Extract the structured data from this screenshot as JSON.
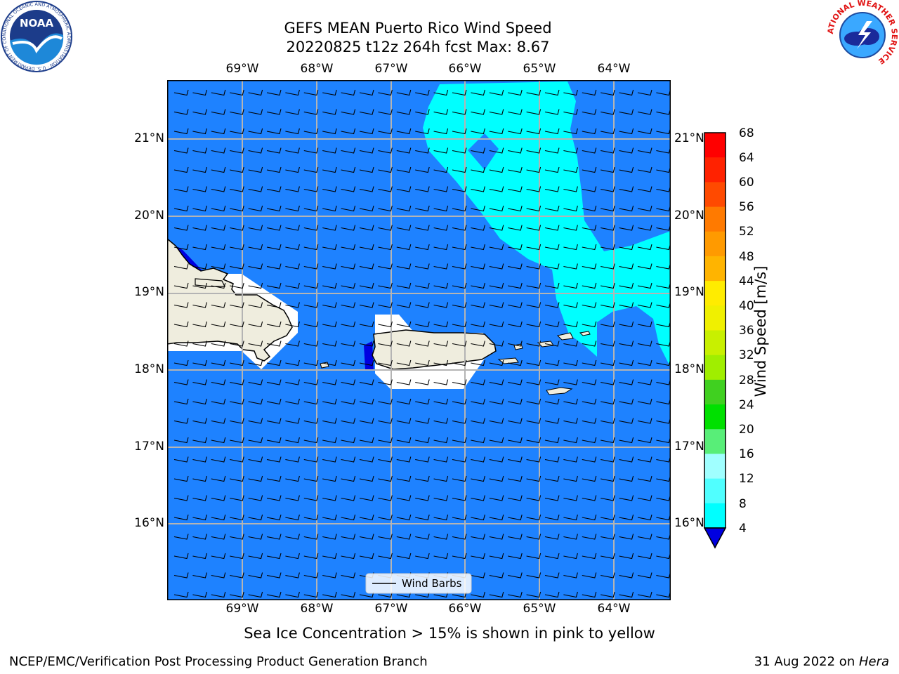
{
  "title": {
    "line1": "GEFS MEAN Puerto Rico Wind Speed",
    "line2": "20220825 t12z 264h fcst   Max: 8.67"
  },
  "lon_ticks": [
    "69°W",
    "68°W",
    "67°W",
    "66°W",
    "65°W",
    "64°W"
  ],
  "lat_ticks": [
    "21°N",
    "20°N",
    "19°N",
    "18°N",
    "17°N",
    "16°N"
  ],
  "legend": {
    "label": "Wind Barbs"
  },
  "colorbar": {
    "label": "Wind Speed [m/s]",
    "ticks": [
      "68",
      "64",
      "60",
      "56",
      "52",
      "48",
      "44",
      "40",
      "36",
      "32",
      "28",
      "24",
      "20",
      "16",
      "12",
      "8",
      "4"
    ],
    "colors": [
      "#ff0000",
      "#ff2200",
      "#ff4a00",
      "#ff7a00",
      "#ff9a00",
      "#ffb400",
      "#ffec00",
      "#f0f000",
      "#c8f000",
      "#a0ee00",
      "#40d020",
      "#00e000",
      "#58ee78",
      "#a0ffff",
      "#50ffff",
      "#00ffff",
      "#0080ff"
    ],
    "under_color": "#0000e0"
  },
  "caption": "Sea Ice Concentration > 15% is shown in pink to yellow",
  "footer": {
    "left": "NCEP/EMC/Verification Post Processing Product Generation Branch",
    "right_prefix": "31 Aug 2022 on ",
    "right_italic": "Hera"
  },
  "logos": {
    "noaa_text": "NOAA",
    "noaa_ring": "NATIONAL OCEANIC AND ATMOSPHERIC ADMINISTRATION · U.S. DEPARTMENT OF COMMERCE",
    "nws_ring": "NATIONAL WEATHER SERVICE"
  },
  "colors": {
    "ocean": "#1e82ff",
    "high_wind": "#00ffff",
    "land": "#efedde",
    "mask": "#ffffff"
  }
}
